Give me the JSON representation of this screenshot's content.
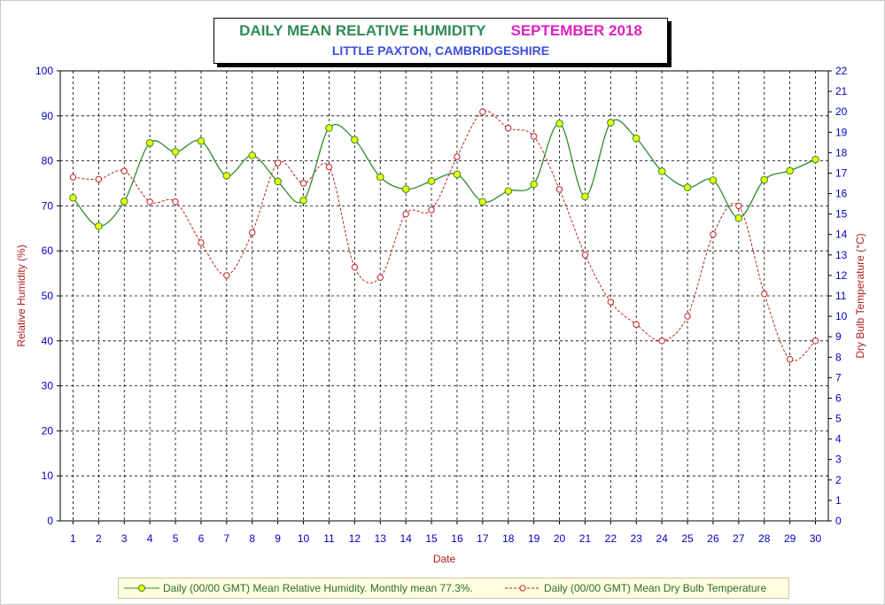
{
  "title": {
    "left": "DAILY MEAN RELATIVE HUMIDITY",
    "right": "SEPTEMBER 2018",
    "subtitle": "LITTLE PAXTON, CAMBRIDGESHIRE"
  },
  "colors": {
    "humidity_line": "#2e8b2e",
    "humidity_marker": "#f0ff00",
    "temp_line": "#c02020",
    "axis_tick_text": "#0000c0",
    "axis_title": "#b02020"
  },
  "legend": {
    "humidity": "Daily (00/00 GMT) Mean Relative Humidity. Monthly mean 77.3%.",
    "temperature": "Daily (00/00 GMT) Mean Dry Bulb Temperature"
  },
  "chart_data": {
    "type": "line",
    "title": "DAILY MEAN RELATIVE HUMIDITY SEPTEMBER 2018",
    "subtitle": "LITTLE PAXTON, CAMBRIDGESHIRE",
    "xlabel": "Date",
    "ylabel": "Relative Humidity (%)",
    "y2label": "Dry Bulb Temperature (°C)",
    "ylim": [
      0,
      100
    ],
    "y2lim": [
      0,
      22
    ],
    "grid": true,
    "legend_position": "bottom",
    "categories": [
      "1",
      "2",
      "3",
      "4",
      "5",
      "6",
      "7",
      "8",
      "9",
      "10",
      "11",
      "12",
      "13",
      "14",
      "15",
      "16",
      "17",
      "18",
      "19",
      "20",
      "21",
      "22",
      "23",
      "24",
      "25",
      "26",
      "27",
      "28",
      "29",
      "30"
    ],
    "yticks": [
      "0",
      "10",
      "20",
      "30",
      "40",
      "50",
      "60",
      "70",
      "80",
      "90",
      "100"
    ],
    "y2ticks": [
      "0",
      "1",
      "2",
      "3",
      "4",
      "5",
      "6",
      "7",
      "8",
      "9",
      "10",
      "11",
      "12",
      "13",
      "14",
      "15",
      "16",
      "17",
      "18",
      "19",
      "20",
      "21",
      "22"
    ],
    "series": [
      {
        "name": "Daily (00/00 GMT) Mean Relative Humidity. Monthly mean 77.3%.",
        "axis": "left",
        "style": "solid-markers",
        "values": [
          71.8,
          65.5,
          71.0,
          84.0,
          82.0,
          84.4,
          76.7,
          81.2,
          75.4,
          71.2,
          87.3,
          84.7,
          76.4,
          73.7,
          75.5,
          77.0,
          70.9,
          73.3,
          74.8,
          88.3,
          72.1,
          88.5,
          85.0,
          77.7,
          74.1,
          75.7,
          67.3,
          75.8,
          77.8,
          80.3
        ]
      },
      {
        "name": "Daily (00/00 GMT) Mean Dry Bulb Temperature",
        "axis": "right",
        "style": "dashed-circles",
        "values": [
          16.8,
          16.7,
          17.1,
          15.6,
          15.6,
          13.6,
          12.0,
          14.1,
          17.5,
          16.5,
          17.3,
          12.4,
          11.9,
          15.0,
          15.2,
          17.8,
          20.0,
          19.2,
          18.8,
          16.2,
          13.0,
          10.7,
          9.6,
          8.8,
          10.0,
          14.0,
          15.4,
          11.1,
          7.9,
          8.8
        ]
      }
    ]
  }
}
